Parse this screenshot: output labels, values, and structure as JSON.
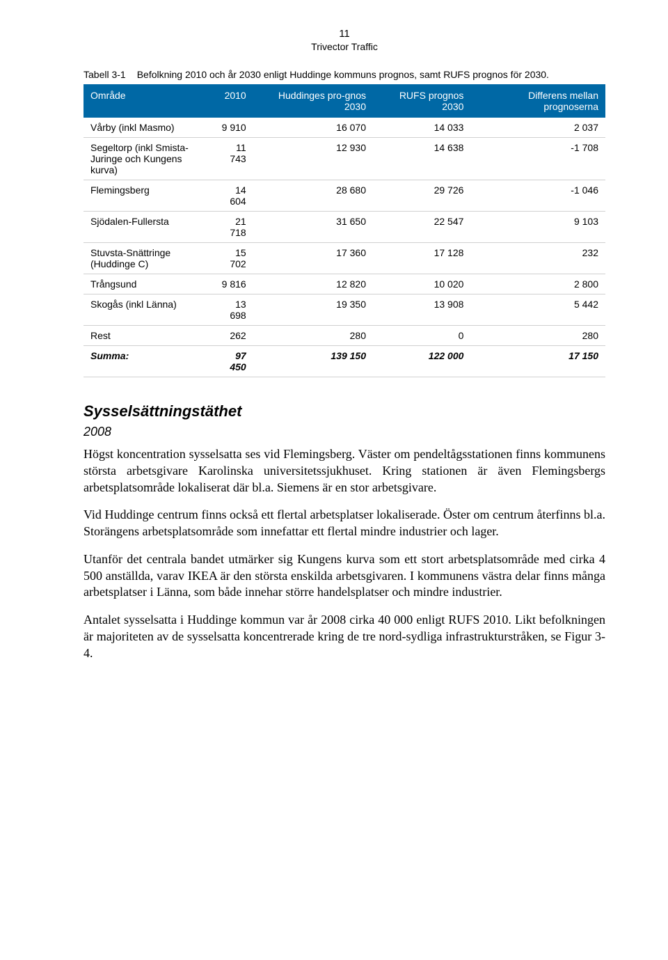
{
  "header": {
    "page_number": "11",
    "sub": "Trivector Traffic"
  },
  "table": {
    "caption_label": "Tabell 3-1",
    "caption_text": "Befolkning 2010 och år 2030 enligt Huddinge kommuns prognos, samt RUFS prognos för 2030.",
    "columns": [
      "Område",
      "2010",
      "Huddinges pro-gnos 2030",
      "RUFS prognos 2030",
      "Differens mellan prognoserna"
    ],
    "header_bg": "#0068a5",
    "header_fg": "#ffffff",
    "rows": [
      {
        "label": "Vårby (inkl Masmo)",
        "c1": "9 910",
        "c2": "16 070",
        "c3": "14 033",
        "c4": "2 037"
      },
      {
        "label": "Segeltorp (inkl Smista-Juringe och Kungens kurva)",
        "c1": "11 743",
        "c2": "12 930",
        "c3": "14 638",
        "c4": "-1 708"
      },
      {
        "label": "Flemingsberg",
        "c1": "14 604",
        "c2": "28 680",
        "c3": "29 726",
        "c4": "-1 046"
      },
      {
        "label": "Sjödalen-Fullersta",
        "c1": "21 718",
        "c2": "31 650",
        "c3": "22 547",
        "c4": "9 103"
      },
      {
        "label": "Stuvsta-Snättringe (Huddinge C)",
        "c1": "15 702",
        "c2": "17 360",
        "c3": "17 128",
        "c4": "232"
      },
      {
        "label": "Trångsund",
        "c1": "9 816",
        "c2": "12 820",
        "c3": "10 020",
        "c4": "2 800"
      },
      {
        "label": "Skogås (inkl Länna)",
        "c1": "13 698",
        "c2": "19 350",
        "c3": "13 908",
        "c4": "5 442"
      },
      {
        "label": "Rest",
        "c1": "262",
        "c2": "280",
        "c3": "0",
        "c4": "280"
      }
    ],
    "summary": {
      "label": "Summa:",
      "c1": "97 450",
      "c2": "139 150",
      "c3": "122 000",
      "c4": "17 150"
    }
  },
  "section": {
    "title": "Sysselsättningstäthet",
    "year": "2008",
    "paragraphs": [
      "Högst koncentration sysselsatta ses vid Flemingsberg. Väster om pendeltågsstationen finns kommunens största arbetsgivare Karolinska universitetssjukhuset. Kring stationen är även Flemingsbergs arbetsplatsområde lokaliserat där bl.a. Siemens är en stor arbetsgivare.",
      "Vid Huddinge centrum finns också ett flertal arbetsplatser lokaliserade. Öster om centrum återfinns bl.a. Storängens arbetsplatsområde som innefattar ett flertal mindre industrier och lager.",
      "Utanför det centrala bandet utmärker sig Kungens kurva som ett stort arbetsplatsområde med cirka 4 500 anställda, varav IKEA är den största enskilda arbetsgivaren. I kommunens västra delar finns många arbetsplatser i Länna, som både innehar större handelsplatser och mindre industrier.",
      "Antalet sysselsatta i Huddinge kommun var år 2008 cirka 40 000 enligt RUFS 2010. Likt befolkningen är majoriteten av de sysselsatta koncentrerade kring de tre nord-sydliga infrastrukturstråken, se Figur 3-4."
    ]
  }
}
